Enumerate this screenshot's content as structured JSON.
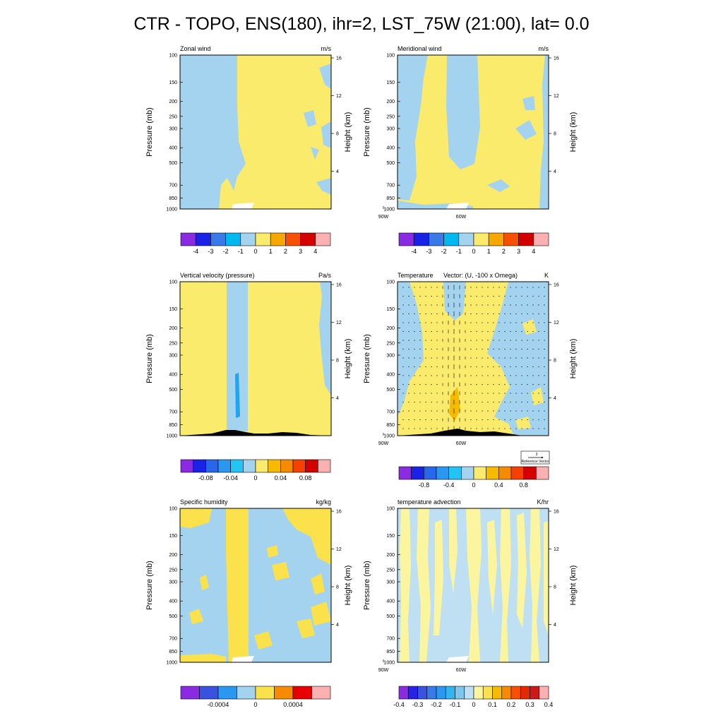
{
  "figure": {
    "title": "CTR - TOPO, ENS(180), ihr=2, LST_75W (21:00), lat=  0.0"
  },
  "axes_common": {
    "pressure_label": "Pressure (mb)",
    "height_label": "Height (km)",
    "pressure_ticks": [
      "100",
      "150",
      "200",
      "250",
      "300",
      "400",
      "500",
      "700",
      "850",
      "1000"
    ],
    "pressure_values": [
      100,
      150,
      200,
      250,
      300,
      400,
      500,
      700,
      850,
      1000
    ],
    "height_ticks": [
      "16",
      "12",
      "8",
      "4"
    ],
    "height_values": [
      16,
      12,
      8,
      4
    ],
    "lon_ticks": [
      "90W",
      "60W"
    ],
    "lon_values": [
      -90,
      -60
    ],
    "lon_range": [
      -100,
      -80
    ],
    "pressure_scale": "log"
  },
  "reference_vector": {
    "value": "3",
    "label": "Reference Vector"
  },
  "chart_data": [
    {
      "type": "heatmap",
      "title": "Zonal wind",
      "units": "m/s",
      "colorbar_labels": [
        "-4",
        "-3",
        "-2",
        "-1",
        "0",
        "1",
        "2",
        "3",
        "4"
      ],
      "colorbar_colors": [
        "#8a2be2",
        "#1a22e6",
        "#3a7ae8",
        "#00b8f0",
        "#a3d3ee",
        "#fbeb6c",
        "#f6a800",
        "#f65100",
        "#d40000",
        "#fbb1b1"
      ]
    },
    {
      "type": "heatmap",
      "title": "Meridional wind",
      "units": "m/s",
      "colorbar_labels": [
        "-4",
        "-3",
        "-2",
        "-1",
        "0",
        "1",
        "2",
        "3",
        "4"
      ],
      "colorbar_colors": [
        "#8a2be2",
        "#1a22e6",
        "#3a7ae8",
        "#00b8f0",
        "#a3d3ee",
        "#fbeb6c",
        "#f6a800",
        "#f65100",
        "#d40000",
        "#fbb1b1"
      ]
    },
    {
      "type": "heatmap",
      "title": "Vertical velocity (pressure)",
      "units": "Pa/s",
      "colorbar_labels": [
        "-0.08",
        "-0.04",
        "0",
        "0.04",
        "0.08"
      ],
      "colorbar_colors": [
        "#8a2be2",
        "#1a22e6",
        "#2a66ea",
        "#2a98f0",
        "#22c4f4",
        "#a3d3ee",
        "#fbeb6c",
        "#f6ba00",
        "#f68a00",
        "#f64000",
        "#d40000",
        "#fbb1b1"
      ]
    },
    {
      "type": "heatmap",
      "title": "Temperature",
      "overlay_title": "Vector: (U, -100 x Omega)",
      "units": "K",
      "colorbar_labels": [
        "-0.8",
        "-0.4",
        "0",
        "0.4",
        "0.8"
      ],
      "colorbar_colors": [
        "#8a2be2",
        "#1a22e6",
        "#2a66ea",
        "#2a98f0",
        "#22c4f4",
        "#a3d3ee",
        "#fbeb6c",
        "#f6ba00",
        "#f68a00",
        "#f64000",
        "#d40000",
        "#fbb1b1"
      ]
    },
    {
      "type": "heatmap",
      "title": "Specific humidity",
      "units": "kg/kg",
      "colorbar_labels": [
        "-0.0004",
        "0",
        "0.0004"
      ],
      "colorbar_colors": [
        "#8a2be2",
        "#3a52e0",
        "#2a98f0",
        "#a3d3ee",
        "#fbe24c",
        "#f68a00",
        "#e60000",
        "#fbb1b1"
      ]
    },
    {
      "type": "heatmap",
      "title": "temperature advection",
      "units": "K/hr",
      "colorbar_labels": [
        "-0.4",
        "-0.3",
        "-0.2",
        "-0.1",
        "0",
        "0.1",
        "0.2",
        "0.3",
        "0.4"
      ],
      "colorbar_colors": [
        "#8a2be2",
        "#2a22e6",
        "#3a52e0",
        "#3a7ae8",
        "#2a98f0",
        "#34b4ee",
        "#7ec6ee",
        "#bfe0f2",
        "#fbf5a0",
        "#fbe24c",
        "#f6ba00",
        "#f68a00",
        "#f65100",
        "#e62a00",
        "#cc1a1a",
        "#fbb1b1"
      ]
    }
  ]
}
